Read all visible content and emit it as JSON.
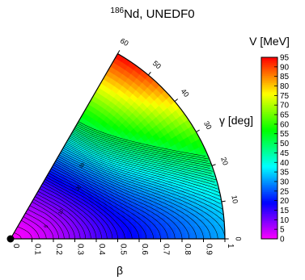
{
  "title": {
    "mass_number": "186",
    "text": "Nd, UNEDF0"
  },
  "chart_data": {
    "type": "heatmap",
    "coordinate_system": "polar beta-gamma sextant",
    "radial_axis": {
      "label": "β",
      "range": [
        0,
        1
      ],
      "ticks": [
        0,
        0.1,
        0.2,
        0.3,
        0.4,
        0.5,
        0.6,
        0.7,
        0.8,
        0.9,
        1
      ],
      "tick_labels": [
        "0",
        "0.1",
        "0.2",
        "0.3",
        "0.4",
        "0.5",
        "0.6",
        "0.7",
        "0.8",
        "0.9",
        "1"
      ]
    },
    "angular_axis": {
      "label": "γ [deg]",
      "range": [
        0,
        60
      ],
      "ticks": [
        0,
        10,
        20,
        30,
        40,
        50,
        60
      ],
      "tick_labels": [
        "0",
        "10",
        "20",
        "30",
        "40",
        "50",
        "60"
      ]
    },
    "colorbar": {
      "label": "V [MeV]",
      "range": [
        0,
        95
      ],
      "ticks": [
        0,
        5,
        10,
        15,
        20,
        25,
        30,
        35,
        40,
        45,
        50,
        55,
        60,
        65,
        70,
        75,
        80,
        85,
        90,
        95
      ],
      "tick_labels": [
        "0",
        "5",
        "10",
        "15",
        "20",
        "25",
        "30",
        "35",
        "40",
        "45",
        "50",
        "55",
        "60",
        "65",
        "70",
        "75",
        "80",
        "85",
        "90",
        "95"
      ]
    },
    "contour_interval_MeV": 1,
    "contour_labels": [
      "5",
      "10",
      "20",
      "30"
    ],
    "minimum": {
      "beta": 0,
      "gamma": 0
    },
    "surface_profile": {
      "beta": [
        0,
        0.1,
        0.2,
        0.3,
        0.4,
        0.5,
        0.6,
        0.7,
        0.8,
        0.9,
        1.0
      ],
      "V_at_gamma_0": [
        0,
        2,
        5,
        9,
        13,
        17,
        20,
        23,
        26,
        29,
        32
      ],
      "V_at_gamma_60": [
        0,
        3,
        8,
        15,
        24,
        35,
        48,
        60,
        72,
        84,
        95
      ]
    }
  }
}
